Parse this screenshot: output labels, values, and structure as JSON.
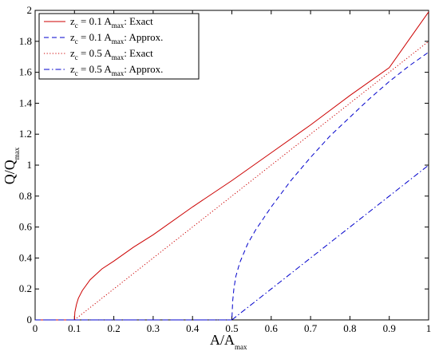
{
  "chart_data": {
    "type": "line",
    "title": "",
    "xlabel": {
      "main": "A/A",
      "sub": "max"
    },
    "ylabel": {
      "main": "Q/Q",
      "sub": "max"
    },
    "xlim": [
      0,
      1
    ],
    "ylim": [
      0,
      2
    ],
    "xticks": [
      0,
      0.1,
      0.2,
      0.3,
      0.4,
      0.5,
      0.6,
      0.7,
      0.8,
      0.9,
      1
    ],
    "xtick_labels": [
      "0",
      "0.1",
      "0.2",
      "0.3",
      "0.4",
      "0.5",
      "0.6",
      "0.7",
      "0.8",
      "0.9",
      "1"
    ],
    "yticks": [
      0,
      0.2,
      0.4,
      0.6,
      0.8,
      1,
      1.2,
      1.4,
      1.6,
      1.8,
      2
    ],
    "ytick_labels": [
      "0",
      "0.2",
      "0.4",
      "0.6",
      "0.8",
      "1",
      "1.2",
      "1.4",
      "1.6",
      "1.8",
      "2"
    ],
    "grid": false,
    "legend_position": "top-left",
    "series": [
      {
        "name": {
          "z": "z",
          "zsub": "c",
          "mid": " = 0.1 A",
          "asub": "max",
          "tail": ": Exact"
        },
        "color": "#cc0000",
        "style": "solid",
        "x": [
          0,
          0.1,
          0.101,
          0.105,
          0.11,
          0.12,
          0.14,
          0.17,
          0.2,
          0.25,
          0.3,
          0.4,
          0.5,
          0.6,
          0.7,
          0.8,
          0.9,
          1.0
        ],
        "y": [
          0,
          0,
          0.05,
          0.1,
          0.14,
          0.19,
          0.26,
          0.33,
          0.38,
          0.47,
          0.55,
          0.73,
          0.9,
          1.08,
          1.26,
          1.45,
          1.63,
          1.99
        ]
      },
      {
        "name": {
          "z": "z",
          "zsub": "c",
          "mid": " = 0.1 A",
          "asub": "max",
          "tail": ": Approx."
        },
        "color": "#0000cc",
        "style": "dashed",
        "x": [
          0,
          0.5,
          0.502,
          0.505,
          0.51,
          0.52,
          0.54,
          0.56,
          0.6,
          0.65,
          0.7,
          0.75,
          0.8,
          0.85,
          0.9,
          0.95,
          1.0
        ],
        "y": [
          0,
          0,
          0.12,
          0.2,
          0.28,
          0.37,
          0.49,
          0.58,
          0.73,
          0.9,
          1.05,
          1.19,
          1.31,
          1.43,
          1.54,
          1.64,
          1.73
        ]
      },
      {
        "name": {
          "z": "z",
          "zsub": "c",
          "mid": " = 0.5 A",
          "asub": "max",
          "tail": ": Exact"
        },
        "color": "#cc0000",
        "style": "dotted",
        "x": [
          0.1,
          0.2,
          0.3,
          0.4,
          0.5,
          0.6,
          0.7,
          0.8,
          0.9,
          1.0
        ],
        "y": [
          0,
          0.2,
          0.4,
          0.6,
          0.8,
          1.0,
          1.2,
          1.4,
          1.6,
          1.8
        ]
      },
      {
        "name": {
          "z": "z",
          "zsub": "c",
          "mid": " = 0.5 A",
          "asub": "max",
          "tail": ": Approx."
        },
        "color": "#0000cc",
        "style": "dashdot",
        "x": [
          0,
          0.5,
          0.6,
          0.7,
          0.8,
          0.9,
          1.0
        ],
        "y": [
          0,
          0,
          0.2,
          0.4,
          0.6,
          0.8,
          1.0
        ]
      }
    ]
  }
}
